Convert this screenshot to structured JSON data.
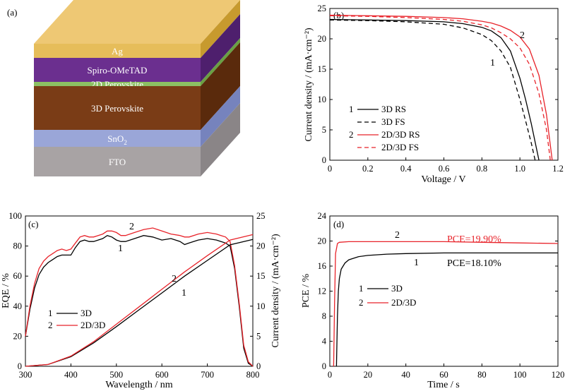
{
  "panel_labels": {
    "a": "(a)",
    "b": "(b)",
    "c": "(c)",
    "d": "(d)"
  },
  "layers": [
    {
      "name": "Ag",
      "display": "Ag",
      "front": "#e6bd5a",
      "side": "#c79a2e",
      "top": "#eec874"
    },
    {
      "name": "Spiro-OMeTAD",
      "display": "Spiro-OMeTAD",
      "front": "#6b2f8f",
      "side": "#4e1f6d"
    },
    {
      "name": "2D Perovskite",
      "display": "2D Perovskite",
      "front": "#8cc063",
      "side": "#6aa044"
    },
    {
      "name": "3D Perovskite",
      "display": "3D Perovskite",
      "front": "#7a3c16",
      "side": "#5a2a0c"
    },
    {
      "name": "SnO2",
      "display": "SnO",
      "sub": "2",
      "front": "#9aa6d8",
      "side": "#7683bd"
    },
    {
      "name": "FTO",
      "display": "FTO",
      "front": "#a8a3a4",
      "side": "#8a8587"
    }
  ],
  "chart_data": [
    {
      "panel": "b",
      "type": "line",
      "xlabel": "Voltage / V",
      "ylabel": "Current density / (mA·cm⁻²)",
      "xlim": [
        0,
        1.2
      ],
      "ylim": [
        0,
        25
      ],
      "xticks": [
        "0",
        "0.2",
        "0.4",
        "0.6",
        "0.8",
        "1.0",
        "1.2"
      ],
      "yticks": [
        "0",
        "5",
        "10",
        "15",
        "20",
        "25"
      ],
      "annotations": [
        "1",
        "2"
      ],
      "series": [
        {
          "name": "3D RS",
          "legend_num": "1",
          "color": "#000000",
          "dash": false,
          "x": [
            0,
            0.2,
            0.4,
            0.6,
            0.7,
            0.8,
            0.85,
            0.9,
            0.95,
            1.0,
            1.03,
            1.06,
            1.08,
            1.1
          ],
          "y": [
            23.2,
            23.1,
            23.0,
            22.8,
            22.5,
            21.9,
            21.3,
            20.2,
            18.0,
            13.5,
            10.0,
            6.0,
            3.0,
            0
          ]
        },
        {
          "name": "3D FS",
          "legend_num": "",
          "color": "#000000",
          "dash": true,
          "x": [
            0,
            0.2,
            0.4,
            0.6,
            0.7,
            0.8,
            0.85,
            0.9,
            0.95,
            1.0,
            1.03,
            1.06,
            1.08
          ],
          "y": [
            23.1,
            23.0,
            22.8,
            22.4,
            21.8,
            20.7,
            19.7,
            18.0,
            15.3,
            10.0,
            6.5,
            2.8,
            0
          ]
        },
        {
          "name": "2D/3D RS",
          "legend_num": "2",
          "color": "#e8232a",
          "dash": false,
          "x": [
            0,
            0.2,
            0.4,
            0.6,
            0.7,
            0.8,
            0.85,
            0.9,
            0.95,
            1.0,
            1.05,
            1.1,
            1.14,
            1.17
          ],
          "y": [
            23.9,
            23.8,
            23.7,
            23.5,
            23.3,
            22.9,
            22.6,
            22.1,
            21.4,
            20.3,
            18.3,
            14.0,
            7.5,
            0
          ]
        },
        {
          "name": "2D/3D FS",
          "legend_num": "",
          "color": "#e8232a",
          "dash": true,
          "x": [
            0,
            0.2,
            0.4,
            0.6,
            0.7,
            0.8,
            0.85,
            0.9,
            0.95,
            1.0,
            1.05,
            1.1,
            1.14,
            1.16
          ],
          "y": [
            23.8,
            23.7,
            23.5,
            23.2,
            22.9,
            22.3,
            21.8,
            21.0,
            20.0,
            18.5,
            15.8,
            11.0,
            5.0,
            0
          ]
        }
      ]
    },
    {
      "panel": "c",
      "type": "line",
      "xlabel": "Wavelength / nm",
      "ylabel": "EQE / %",
      "y2label": "Current density / (mA·cm⁻²)",
      "xlim": [
        300,
        800
      ],
      "ylim": [
        0,
        100
      ],
      "y2lim": [
        0,
        25
      ],
      "xticks": [
        "300",
        "400",
        "500",
        "600",
        "700",
        "800"
      ],
      "yticks": [
        "0",
        "20",
        "40",
        "60",
        "80",
        "100"
      ],
      "y2ticks": [
        "0",
        "5",
        "10",
        "15",
        "20",
        "25"
      ],
      "annotations": [
        "1",
        "2",
        "2",
        "1"
      ],
      "series": [
        {
          "name": "3D",
          "legend_num": "1",
          "color": "#000000",
          "axis": "left",
          "x": [
            300,
            310,
            320,
            330,
            340,
            350,
            360,
            370,
            380,
            390,
            400,
            410,
            420,
            430,
            440,
            450,
            460,
            470,
            480,
            490,
            500,
            510,
            520,
            540,
            560,
            580,
            600,
            620,
            640,
            650,
            660,
            680,
            700,
            720,
            730,
            740,
            750,
            760,
            770,
            780,
            790,
            800
          ],
          "y": [
            20,
            38,
            52,
            61,
            66,
            69,
            71,
            73,
            74,
            74,
            74,
            79,
            83,
            84,
            83,
            83,
            84,
            85,
            87,
            86,
            84,
            83,
            83,
            85,
            87,
            86,
            84,
            85,
            83,
            81,
            82,
            84,
            85,
            84,
            83,
            82,
            80,
            65,
            40,
            12,
            2,
            0
          ]
        },
        {
          "name": "2D/3D",
          "legend_num": "2",
          "color": "#e8232a",
          "axis": "left",
          "x": [
            300,
            310,
            320,
            330,
            340,
            350,
            360,
            370,
            380,
            390,
            400,
            410,
            420,
            430,
            440,
            450,
            460,
            470,
            480,
            490,
            500,
            510,
            520,
            540,
            560,
            580,
            600,
            620,
            640,
            650,
            660,
            680,
            700,
            720,
            730,
            740,
            750,
            760,
            770,
            780,
            790,
            800
          ],
          "y": [
            20,
            40,
            55,
            65,
            70,
            73,
            75,
            77,
            78,
            77,
            78,
            82,
            86,
            87,
            86,
            86,
            87,
            88,
            90,
            90,
            89,
            87,
            87,
            89,
            91,
            92,
            90,
            88,
            87,
            86,
            86,
            88,
            89,
            88,
            87,
            86,
            83,
            67,
            42,
            14,
            3,
            0
          ]
        },
        {
          "name": "3D Jsc",
          "legend_num": "",
          "color": "#000000",
          "axis": "right",
          "x": [
            300,
            350,
            400,
            450,
            500,
            550,
            600,
            650,
            700,
            750,
            800
          ],
          "y": [
            0,
            0.3,
            1.6,
            3.9,
            6.6,
            9.4,
            12.2,
            15.0,
            17.6,
            20.2,
            21.1
          ]
        },
        {
          "name": "2D/3D Jsc",
          "legend_num": "",
          "color": "#e8232a",
          "axis": "right",
          "x": [
            300,
            350,
            400,
            450,
            500,
            550,
            600,
            650,
            700,
            750,
            800
          ],
          "y": [
            0,
            0.3,
            1.7,
            4.1,
            7.0,
            9.9,
            12.8,
            15.7,
            18.4,
            21.0,
            21.9
          ]
        }
      ]
    },
    {
      "panel": "d",
      "type": "line",
      "xlabel": "Time / s",
      "ylabel": "PCE / %",
      "xlim": [
        0,
        120
      ],
      "ylim": [
        0,
        24
      ],
      "xticks": [
        "0",
        "20",
        "40",
        "60",
        "80",
        "100",
        "120"
      ],
      "yticks": [
        "0",
        "4",
        "8",
        "12",
        "16",
        "20",
        "24"
      ],
      "annotations": [
        "2",
        "1"
      ],
      "pce_labels": [
        "PCE=19.90%",
        "PCE=18.10%"
      ],
      "series": [
        {
          "name": "3D",
          "legend_num": "1",
          "color": "#000000",
          "x": [
            3.5,
            4,
            4.5,
            5,
            6,
            8,
            10,
            15,
            20,
            30,
            40,
            60,
            80,
            100,
            120
          ],
          "y": [
            0,
            8,
            12,
            14,
            15.5,
            16.5,
            17.0,
            17.5,
            17.7,
            17.9,
            18.0,
            18.1,
            18.1,
            18.1,
            18.1
          ]
        },
        {
          "name": "2D/3D",
          "legend_num": "2",
          "color": "#e8232a",
          "x": [
            2,
            2.5,
            3,
            4,
            5,
            10,
            20,
            40,
            60,
            80,
            100,
            120
          ],
          "y": [
            0,
            10,
            18,
            19.6,
            19.8,
            19.9,
            19.9,
            19.9,
            19.9,
            19.8,
            19.7,
            19.6
          ]
        }
      ]
    }
  ]
}
